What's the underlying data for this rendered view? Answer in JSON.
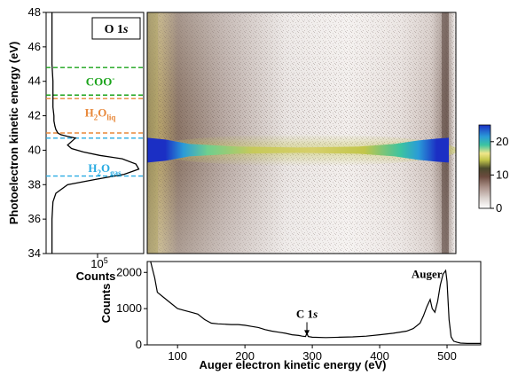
{
  "chart_data": [
    {
      "id": "left",
      "type": "line",
      "annotation": "O 1s",
      "annotation_main": "O 1",
      "annotation_italic": "s",
      "ylabel": "Photoelectron kinetic energy (eV)",
      "xlabel": "Counts",
      "x_tick_label": "10",
      "x_tick_exponent": "5",
      "ylim": [
        34,
        48
      ],
      "y_ticks": [
        "34",
        "36",
        "38",
        "40",
        "42",
        "44",
        "46",
        "48"
      ],
      "y_tick_values": [
        34,
        36,
        38,
        40,
        42,
        44,
        46,
        48
      ],
      "xlim": [
        0,
        1
      ],
      "series": [
        {
          "x": [
            0.06,
            0.06,
            0.06,
            0.06,
            0.07,
            0.07,
            0.07,
            0.08,
            0.08,
            0.09,
            0.1,
            0.12,
            0.15,
            0.22,
            0.3,
            0.26,
            0.22,
            0.26,
            0.38,
            0.55,
            0.78,
            0.92,
            0.95,
            0.8,
            0.5,
            0.22,
            0.1,
            0.07,
            0.06,
            0.06
          ],
          "y": [
            48.0,
            47.0,
            46.0,
            45.0,
            44.0,
            43.0,
            42.5,
            42.0,
            41.7,
            41.4,
            41.2,
            41.0,
            40.9,
            40.8,
            40.7,
            40.5,
            40.3,
            40.1,
            39.9,
            39.7,
            39.5,
            39.2,
            38.9,
            38.6,
            38.3,
            38.0,
            37.5,
            37.0,
            36.0,
            34.0
          ]
        }
      ],
      "hlines": [
        {
          "y": 44.8,
          "color": "#1aa31a",
          "group": "COO-"
        },
        {
          "y": 43.2,
          "color": "#1aa31a",
          "group": "COO-"
        },
        {
          "y": 43.0,
          "color": "#e8883a",
          "group": "H2Oliq"
        },
        {
          "y": 41.0,
          "color": "#e8883a",
          "group": "H2Oliq"
        },
        {
          "y": 40.7,
          "color": "#29abe2",
          "group": "H2Ogas"
        },
        {
          "y": 38.5,
          "color": "#29abe2",
          "group": "H2Ogas"
        }
      ],
      "region_labels": {
        "coo": {
          "text": "COO",
          "sup": "-",
          "color": "#1aa31a",
          "y": 44.0
        },
        "h2o_liq": {
          "pre": "H",
          "sub1": "2",
          "mid": "O",
          "sub2": "liq",
          "color": "#e8883a",
          "y": 42.2
        },
        "h2o_gas": {
          "pre": "H",
          "sub1": "2",
          "mid": "O",
          "sub2": "gas",
          "color": "#29abe2",
          "y": 39.0
        }
      }
    },
    {
      "id": "heatmap",
      "type": "heatmap",
      "xlim": [
        60,
        550
      ],
      "ylim": [
        34,
        48
      ],
      "band_center_y": 40.0,
      "colorbar": {
        "ticks": [
          "0",
          "10",
          "20"
        ],
        "tick_values": [
          0,
          10,
          20
        ],
        "range": [
          0,
          25
        ],
        "colors": [
          "#ffffff",
          "#dcd3cf",
          "#a88e86",
          "#6b4a3e",
          "#4a4a2c",
          "#c2c64a",
          "#f0e68a",
          "#3cc4a0",
          "#2a9bd8",
          "#1b2fc4"
        ]
      }
    },
    {
      "id": "bottom",
      "type": "line",
      "xlabel": "Auger electron kinetic energy (eV)",
      "ylabel": "Counts",
      "xlim": [
        55,
        550
      ],
      "ylim": [
        0,
        2300
      ],
      "x_ticks": [
        "100",
        "200",
        "300",
        "400",
        "500"
      ],
      "x_tick_values": [
        100,
        200,
        300,
        400,
        500
      ],
      "y_ticks": [
        "0",
        "1000",
        "2000"
      ],
      "y_tick_values": [
        0,
        1000,
        2000
      ],
      "series": [
        {
          "x": [
            60,
            62,
            66,
            70,
            80,
            90,
            100,
            110,
            120,
            130,
            140,
            150,
            160,
            170,
            180,
            190,
            200,
            210,
            220,
            230,
            240,
            250,
            260,
            270,
            280,
            285,
            290,
            292,
            294,
            300,
            320,
            340,
            360,
            380,
            400,
            420,
            440,
            450,
            460,
            465,
            470,
            475,
            478,
            482,
            486,
            490,
            494,
            498,
            500,
            503,
            506,
            510,
            515,
            520,
            530,
            540,
            550
          ],
          "y": [
            2300,
            2150,
            1850,
            1450,
            1300,
            1150,
            1000,
            950,
            900,
            850,
            700,
            600,
            580,
            570,
            560,
            560,
            540,
            510,
            480,
            420,
            380,
            350,
            320,
            280,
            260,
            240,
            230,
            320,
            230,
            210,
            200,
            210,
            220,
            240,
            280,
            320,
            380,
            450,
            600,
            800,
            1050,
            1250,
            1000,
            900,
            1200,
            1650,
            1950,
            2050,
            1750,
            700,
            220,
            100,
            70,
            50,
            40,
            40,
            40
          ]
        }
      ],
      "annotations": {
        "c1s": {
          "main": "C 1",
          "italic": "s",
          "x": 292,
          "arrow_y_top": 650,
          "arrow_y_bottom": 260
        },
        "auger": {
          "text": "Auger",
          "x": 470,
          "y": 1950
        }
      }
    }
  ]
}
